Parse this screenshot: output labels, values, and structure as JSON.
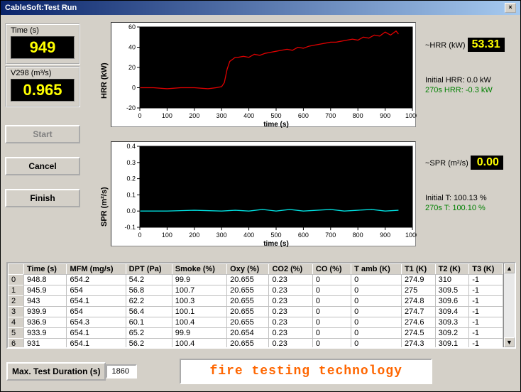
{
  "window": {
    "title": "CableSoft:Test Run"
  },
  "time_box": {
    "label": "Time (s)",
    "value": "949"
  },
  "v298_box": {
    "label": "V298 (m³/s)",
    "value": "0.965"
  },
  "buttons": {
    "start": "Start",
    "cancel": "Cancel",
    "finish": "Finish"
  },
  "hrr_info": {
    "label_prefix": "~HRR (kW)",
    "value": "53.31",
    "initial_label": "Initial HRR: 0.0 kW",
    "t270_label": "270s HRR: -0.3 kW"
  },
  "spr_info": {
    "label_prefix": "~SPR (m²/s)",
    "value": "0.00",
    "initial_label": "Initial T: 100.13 %",
    "t270_label": "270s T: 100.10 %"
  },
  "hrr_chart": {
    "ylabel": "HRR (kW)",
    "xlabel": "time (s)",
    "xlim": [
      0,
      1000
    ],
    "xtick_step": 100,
    "ylim": [
      -20,
      60
    ],
    "ytick_step": 20,
    "line_color": "#e00000",
    "bg": "#000000",
    "grid": "#404040",
    "points": [
      [
        0,
        0
      ],
      [
        50,
        0
      ],
      [
        100,
        -1
      ],
      [
        150,
        0
      ],
      [
        200,
        0
      ],
      [
        250,
        -1
      ],
      [
        280,
        0
      ],
      [
        300,
        1
      ],
      [
        310,
        5
      ],
      [
        320,
        18
      ],
      [
        330,
        26
      ],
      [
        340,
        28
      ],
      [
        350,
        30
      ],
      [
        360,
        30
      ],
      [
        380,
        31
      ],
      [
        400,
        30
      ],
      [
        420,
        33
      ],
      [
        440,
        32
      ],
      [
        460,
        34
      ],
      [
        480,
        35
      ],
      [
        500,
        36
      ],
      [
        520,
        37
      ],
      [
        540,
        38
      ],
      [
        560,
        37
      ],
      [
        580,
        40
      ],
      [
        600,
        39
      ],
      [
        620,
        41
      ],
      [
        640,
        42
      ],
      [
        660,
        43
      ],
      [
        680,
        44
      ],
      [
        700,
        45
      ],
      [
        720,
        45
      ],
      [
        740,
        46
      ],
      [
        760,
        47
      ],
      [
        780,
        48
      ],
      [
        800,
        47
      ],
      [
        820,
        50
      ],
      [
        840,
        49
      ],
      [
        860,
        52
      ],
      [
        880,
        51
      ],
      [
        900,
        55
      ],
      [
        920,
        52
      ],
      [
        940,
        56
      ],
      [
        949,
        53
      ]
    ]
  },
  "spr_chart": {
    "ylabel": "SPR (m²/s)",
    "xlabel": "time (s)",
    "xlim": [
      0,
      1000
    ],
    "xtick_step": 100,
    "ylim": [
      -0.1,
      0.4
    ],
    "ytick_step": 0.1,
    "line_color": "#00e0e0",
    "bg": "#000000",
    "grid": "#404040",
    "points": [
      [
        0,
        0.0
      ],
      [
        100,
        0.0
      ],
      [
        200,
        0.005
      ],
      [
        300,
        0.0
      ],
      [
        350,
        0.005
      ],
      [
        400,
        0.0
      ],
      [
        450,
        0.01
      ],
      [
        500,
        0.0
      ],
      [
        550,
        0.01
      ],
      [
        600,
        0.0
      ],
      [
        650,
        0.005
      ],
      [
        700,
        0.01
      ],
      [
        750,
        0.0
      ],
      [
        800,
        0.005
      ],
      [
        850,
        0.01
      ],
      [
        900,
        0.0
      ],
      [
        949,
        0.005
      ]
    ]
  },
  "table": {
    "columns": [
      "Time (s)",
      "MFM (mg/s)",
      "DPT (Pa)",
      "Smoke (%)",
      "Oxy (%)",
      "CO2 (%)",
      "CO (%)",
      "T amb (K)",
      "T1 (K)",
      "T2 (K)",
      "T3 (K)"
    ],
    "rows": [
      [
        "948.8",
        "654.2",
        "54.2",
        "99.9",
        "20.655",
        "0.23",
        "0",
        "0",
        "274.9",
        "310",
        "-1"
      ],
      [
        "945.9",
        "654",
        "56.8",
        "100.7",
        "20.655",
        "0.23",
        "0",
        "0",
        "275",
        "309.5",
        "-1"
      ],
      [
        "943",
        "654.1",
        "62.2",
        "100.3",
        "20.655",
        "0.23",
        "0",
        "0",
        "274.8",
        "309.6",
        "-1"
      ],
      [
        "939.9",
        "654",
        "56.4",
        "100.1",
        "20.655",
        "0.23",
        "0",
        "0",
        "274.7",
        "309.4",
        "-1"
      ],
      [
        "936.9",
        "654.3",
        "60.1",
        "100.4",
        "20.655",
        "0.23",
        "0",
        "0",
        "274.6",
        "309.3",
        "-1"
      ],
      [
        "933.9",
        "654.1",
        "65.2",
        "99.9",
        "20.654",
        "0.23",
        "0",
        "0",
        "274.5",
        "309.2",
        "-1"
      ],
      [
        "931",
        "654.1",
        "56.2",
        "100.4",
        "20.655",
        "0.23",
        "0",
        "0",
        "274.3",
        "309.1",
        "-1"
      ]
    ]
  },
  "footer": {
    "dur_label": "Max. Test Duration (s)",
    "dur_value": "1860",
    "logo_text": "fire testing technology"
  }
}
